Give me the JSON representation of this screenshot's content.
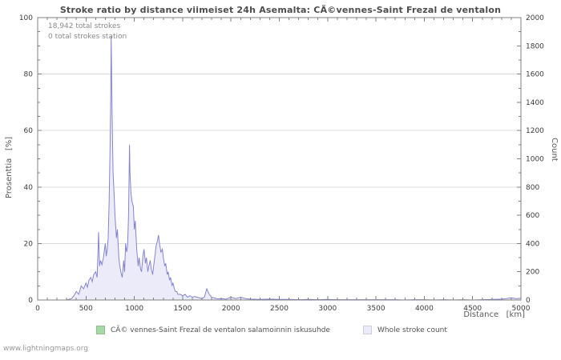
{
  "watermark": "www.lightningmaps.org",
  "annotations": {
    "total": "18,942 total strokes",
    "station": "0 total strokes station"
  },
  "axes": {
    "left_label": "Prosenttia   [%]",
    "right_label": "Count",
    "x_label": "Distance   [km]"
  },
  "chart_data": {
    "type": "area",
    "title": "Stroke ratio by distance viimeiset 24h Asemalta: CÃ©vennes-Saint Frezal de ventalon",
    "xlabel": "Distance [km]",
    "ylabel_left": "Prosenttia [%]",
    "ylabel_right": "Count",
    "xlim": [
      0,
      5000
    ],
    "ylim_left": [
      0,
      100
    ],
    "ylim_right": [
      0,
      2000
    ],
    "x_ticks": [
      0,
      500,
      1000,
      1500,
      2000,
      2500,
      3000,
      3500,
      4000,
      4500,
      5000
    ],
    "left_ticks": [
      0,
      20,
      40,
      60,
      80,
      100
    ],
    "right_ticks": [
      0,
      200,
      400,
      600,
      800,
      1000,
      1200,
      1400,
      1600,
      1800,
      2000
    ],
    "grid": "horizontal",
    "legend_position": "bottom",
    "series": [
      {
        "name": "CÃ© vennes-Saint Frezal de ventalon salamoinnin iskusuhde",
        "axis": "left",
        "color": "#a6d9a6",
        "x": [
          0,
          5000
        ],
        "y": [
          0,
          0
        ]
      },
      {
        "name": "Whole stroke count",
        "axis": "right",
        "color": "#8585cf",
        "fill": "#ebebfa",
        "x": [
          0,
          300,
          350,
          375,
          400,
          425,
          450,
          475,
          500,
          515,
          530,
          550,
          565,
          580,
          600,
          615,
          630,
          640,
          650,
          665,
          680,
          700,
          710,
          720,
          730,
          740,
          750,
          755,
          760,
          765,
          770,
          780,
          790,
          800,
          815,
          825,
          840,
          850,
          860,
          875,
          890,
          900,
          910,
          920,
          930,
          940,
          950,
          955,
          965,
          975,
          990,
          1000,
          1010,
          1025,
          1040,
          1050,
          1065,
          1075,
          1090,
          1100,
          1115,
          1125,
          1140,
          1150,
          1165,
          1175,
          1190,
          1200,
          1215,
          1225,
          1240,
          1250,
          1260,
          1275,
          1290,
          1300,
          1315,
          1325,
          1340,
          1350,
          1365,
          1375,
          1390,
          1400,
          1415,
          1425,
          1440,
          1450,
          1475,
          1500,
          1525,
          1550,
          1575,
          1600,
          1625,
          1650,
          1675,
          1700,
          1725,
          1750,
          1775,
          1800,
          1825,
          1850,
          1875,
          1900,
          1950,
          2000,
          2050,
          2100,
          2150,
          2200,
          2300,
          2400,
          2500,
          2600,
          2700,
          2800,
          2900,
          3000,
          3100,
          3200,
          3300,
          3400,
          3500,
          3600,
          3700,
          3800,
          3900,
          4000,
          4100,
          4200,
          4300,
          4400,
          4500,
          4600,
          4700,
          4800,
          4850,
          4900,
          4950,
          5000
        ],
        "y": [
          0,
          0,
          10,
          30,
          60,
          40,
          100,
          80,
          120,
          90,
          140,
          160,
          130,
          180,
          200,
          160,
          480,
          240,
          280,
          250,
          300,
          400,
          310,
          360,
          440,
          700,
          1100,
          1400,
          1870,
          1600,
          1300,
          900,
          760,
          600,
          440,
          500,
          300,
          240,
          200,
          160,
          280,
          200,
          400,
          340,
          380,
          600,
          1100,
          900,
          760,
          700,
          660,
          500,
          560,
          360,
          240,
          300,
          220,
          200,
          320,
          360,
          260,
          300,
          200,
          240,
          280,
          220,
          180,
          240,
          320,
          380,
          420,
          460,
          400,
          340,
          360,
          300,
          240,
          260,
          180,
          200,
          140,
          160,
          100,
          120,
          80,
          60,
          60,
          40,
          40,
          30,
          40,
          20,
          30,
          20,
          25,
          20,
          15,
          10,
          20,
          80,
          40,
          20,
          15,
          10,
          8,
          10,
          6,
          20,
          10,
          20,
          10,
          6,
          4,
          6,
          4,
          4,
          2,
          4,
          2,
          4,
          2,
          2,
          2,
          2,
          2,
          2,
          2,
          0,
          2,
          2,
          0,
          2,
          0,
          2,
          0,
          2,
          4,
          6,
          10,
          16,
          10,
          12
        ]
      }
    ]
  }
}
